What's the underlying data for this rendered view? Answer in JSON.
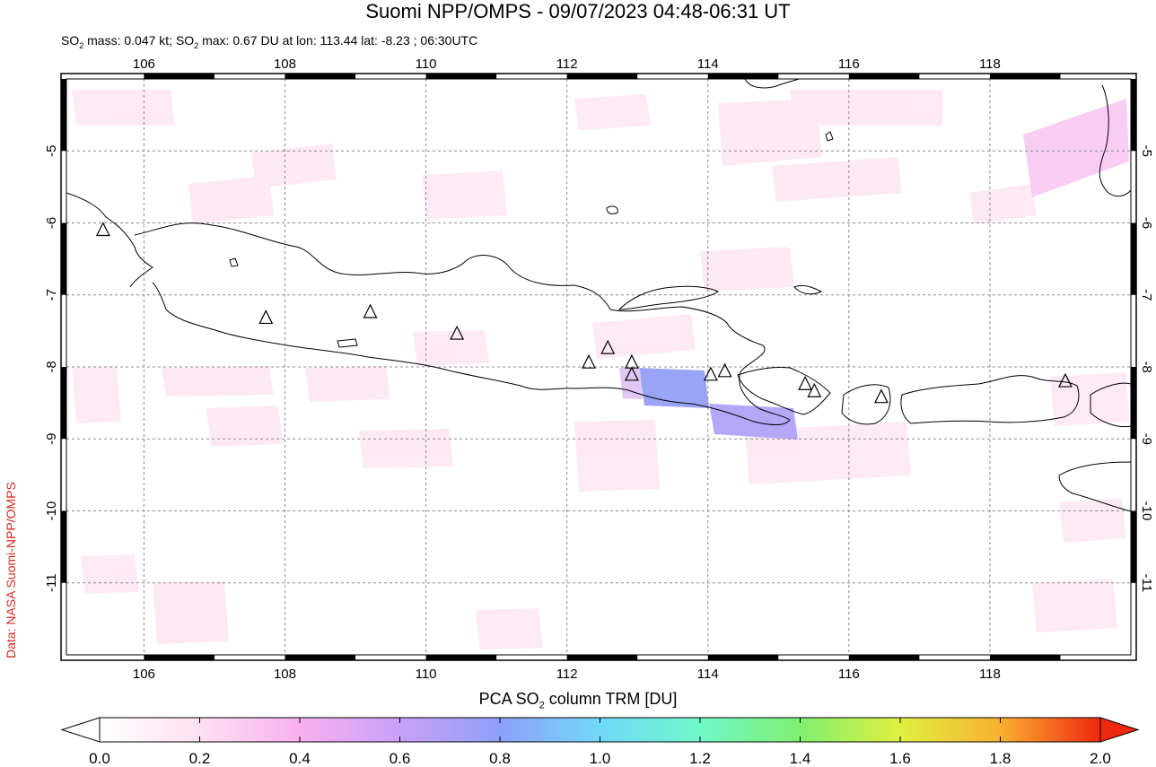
{
  "title": "Suomi NPP/OMPS - 09/07/2023 04:48-06:31 UT",
  "subtitle": {
    "prefix": "SO",
    "mass_text": " mass: 0.047 kt; SO",
    "max_text": " max: 0.67 DU at lon: 113.44 lat: -8.23 ; 06:30UTC"
  },
  "credit": "Data: NASA Suomi-NPP/OMPS",
  "map": {
    "lon_range": [
      104.9,
      120.0
    ],
    "lat_range": [
      -12.0,
      -4.0
    ],
    "lon_ticks": [
      "106",
      "108",
      "110",
      "112",
      "114",
      "116",
      "118"
    ],
    "lat_ticks": [
      "-5",
      "-6",
      "-7",
      "-8",
      "-9",
      "-10",
      "-11"
    ],
    "grid": true,
    "volcano_marker": "triangle-icon",
    "volcanoes": [
      {
        "lon": 105.42,
        "lat": -6.1
      },
      {
        "lon": 107.73,
        "lat": -7.32
      },
      {
        "lon": 109.21,
        "lat": -7.24
      },
      {
        "lon": 110.44,
        "lat": -7.54
      },
      {
        "lon": 112.31,
        "lat": -7.94
      },
      {
        "lon": 112.58,
        "lat": -7.74
      },
      {
        "lon": 112.92,
        "lat": -7.94
      },
      {
        "lon": 112.92,
        "lat": -8.11
      },
      {
        "lon": 114.04,
        "lat": -8.11
      },
      {
        "lon": 114.24,
        "lat": -8.06
      },
      {
        "lon": 115.38,
        "lat": -8.24
      },
      {
        "lon": 115.51,
        "lat": -8.34
      },
      {
        "lon": 116.46,
        "lat": -8.42
      },
      {
        "lon": 119.07,
        "lat": -8.2
      }
    ],
    "so2_max_region": {
      "lon": 113.44,
      "lat": -8.23,
      "value_du": 0.67
    }
  },
  "colorbar": {
    "label_prefix": "PCA SO",
    "label_suffix": " column TRM [DU]",
    "min": 0.0,
    "max": 2.0,
    "ticks": [
      "0.0",
      "0.2",
      "0.4",
      "0.6",
      "0.8",
      "1.0",
      "1.2",
      "1.4",
      "1.6",
      "1.8",
      "2.0"
    ],
    "colors": [
      "#ffffff",
      "#fde0f0",
      "#f8b0f0",
      "#c8a0f8",
      "#8ea0f8",
      "#70d8f8",
      "#70f8c8",
      "#80f070",
      "#e0f040",
      "#f8b030",
      "#f02810"
    ]
  }
}
